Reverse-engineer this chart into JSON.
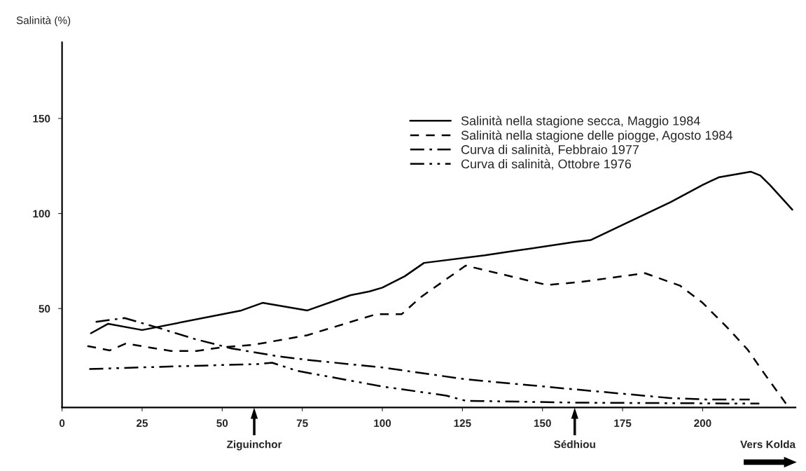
{
  "chart_data": {
    "type": "line",
    "ylabel": "Salinità (%)",
    "xlim": [
      0,
      229
    ],
    "ylim": [
      -2,
      190
    ],
    "xticks": [
      0,
      25,
      50,
      75,
      100,
      125,
      150,
      175,
      200
    ],
    "yticks": [
      50,
      100,
      150
    ],
    "grid": false,
    "legend": "top right",
    "marker": "none",
    "series": [
      {
        "name": "Salinità nella stagione secca, Maggio 1984",
        "color": "#000000",
        "line_style": "solid",
        "x": [
          9,
          14.4,
          25,
          56,
          62.6,
          76.6,
          90,
          96,
          100,
          107,
          113,
          132,
          140,
          160,
          165,
          175,
          190,
          200,
          205,
          215,
          218,
          221,
          228
        ],
        "values": [
          37,
          42,
          38.7,
          49,
          53,
          49,
          57,
          59,
          61,
          67,
          74,
          78,
          80,
          85,
          86,
          94,
          106,
          115,
          119,
          122,
          120,
          115,
          102
        ]
      },
      {
        "name": "Salinità nella stagione delle piogge, Agosto 1984",
        "color": "#000000",
        "line_style": "dashed",
        "x": [
          7.9,
          14.9,
          19.9,
          34,
          42,
          50,
          60,
          76.6,
          98,
          106,
          112,
          126,
          151.4,
          162,
          182,
          193,
          200,
          207.7,
          214,
          219,
          226
        ],
        "values": [
          30.3,
          28,
          31.6,
          27.7,
          27.7,
          29.6,
          31,
          36,
          47,
          47,
          56,
          72.6,
          62.4,
          64,
          68.6,
          62,
          53,
          40,
          28.5,
          16.4,
          0
        ]
      },
      {
        "name": "Curva di salinità, Febbraio 1977",
        "color": "#000000",
        "line_style": "dashdot",
        "x": [
          10.5,
          19.5,
          29.8,
          41.4,
          53,
          67,
          76.6,
          100,
          126,
          160.6,
          190,
          201,
          214.7
        ],
        "values": [
          43,
          45,
          40,
          34,
          29,
          25,
          23,
          19,
          12.8,
          7.4,
          2.9,
          2.2,
          2.2
        ]
      },
      {
        "name": "Curva di salinità, Ottobre 1976",
        "color": "#000000",
        "line_style": "dashdotdot",
        "x": [
          8.5,
          37.6,
          61,
          65.6,
          73.5,
          100,
          120,
          126,
          160.6,
          217.7
        ],
        "values": [
          18.2,
          19.7,
          20.8,
          21.5,
          17.2,
          9,
          4.2,
          1.5,
          0.5,
          0
        ]
      }
    ],
    "annotations": [
      "Ziguinchor",
      "Sédhiou",
      "Vers Kolda"
    ]
  }
}
